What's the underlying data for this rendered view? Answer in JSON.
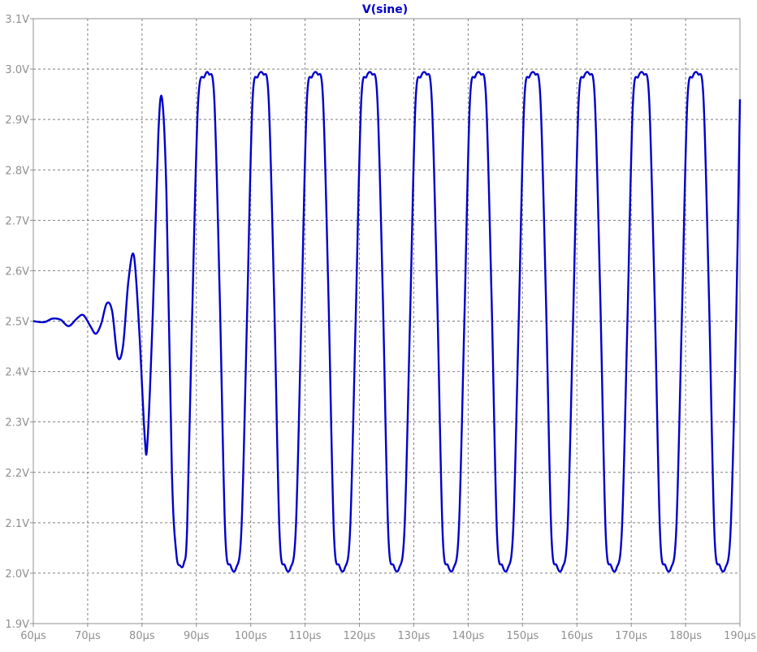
{
  "trace_name": "V(sine)",
  "colors": {
    "background": "#ffffff",
    "frame": "#909090",
    "grid": "#808080",
    "tick_label": "#909090",
    "trace": "#0000cc"
  },
  "chart_data": {
    "type": "line",
    "title": "V(sine)",
    "xlabel": "",
    "ylabel": "",
    "x_unit": "µs",
    "y_unit": "V",
    "xlim": [
      60,
      190
    ],
    "ylim": [
      1.9,
      3.1
    ],
    "grid": true,
    "x_ticks": [
      60,
      70,
      80,
      90,
      100,
      110,
      120,
      130,
      140,
      150,
      160,
      170,
      180,
      190
    ],
    "x_tick_labels": [
      "60µs",
      "70µs",
      "80µs",
      "90µs",
      "100µs",
      "110µs",
      "120µs",
      "130µs",
      "140µs",
      "150µs",
      "160µs",
      "170µs",
      "180µs",
      "190µs"
    ],
    "y_ticks": [
      1.9,
      2.0,
      2.1,
      2.2,
      2.3,
      2.4,
      2.5,
      2.6,
      2.7,
      2.8,
      2.9,
      3.0,
      3.1
    ],
    "y_tick_labels": [
      "1.9V",
      "2.0V",
      "2.1V",
      "2.2V",
      "2.3V",
      "2.4V",
      "2.5V",
      "2.6V",
      "2.7V",
      "2.8V",
      "2.9V",
      "3.0V",
      "3.1V"
    ],
    "series": [
      {
        "name": "V(sine)",
        "x": [
          60,
          62,
          63.5,
          65,
          66.5,
          68,
          69.2,
          70.5,
          71.5,
          72.5,
          73.5,
          74.5,
          75.5,
          76.5,
          77.5,
          78.5,
          79.5,
          80.5,
          81,
          82,
          83,
          83.7,
          84.5,
          85.5,
          86.3,
          87,
          87.7,
          88.3,
          89.2,
          90.3,
          91.5,
          92.3,
          93.3,
          94.3,
          95.3,
          96.3,
          97.3,
          98.3,
          99.3,
          100.3,
          101.3,
          102.3,
          103.3,
          104.3,
          105.3,
          106.3,
          107.3,
          108.3,
          109.3,
          110.3,
          111.3,
          112.3,
          113.3,
          114.3,
          115.3,
          116.3,
          117.3,
          118.3,
          119.3,
          120.3,
          121.3,
          122.3,
          123.3,
          124.3,
          125.3,
          126.3,
          127.3,
          128.3,
          129.3,
          130.3,
          131.3,
          132.3,
          133.3,
          134.3,
          135.3,
          136.3,
          137.3,
          138.3,
          139.3,
          140.3,
          141.3,
          142.3,
          143.3,
          144.3,
          145.3,
          146.3,
          147.3,
          148.3,
          149.3,
          150.3,
          151.3,
          152.3,
          153.3,
          154.3,
          155.3,
          156.3,
          157.3,
          158.3,
          159.3,
          160.3,
          161.3,
          162.3,
          163.3,
          164.3,
          165.3,
          166.3,
          167.3,
          168.3,
          169.3,
          170.3,
          171.3,
          172.3,
          173.3,
          174.3,
          175.3,
          176.3,
          177.3,
          178.3,
          179.3,
          180.3,
          181.3,
          182.3,
          183.3,
          184.3,
          185.3,
          186.3,
          187.3,
          188.3,
          189.3,
          190
        ],
        "y": [
          2.5,
          2.498,
          2.505,
          2.503,
          2.49,
          2.505,
          2.512,
          2.49,
          2.475,
          2.495,
          2.535,
          2.52,
          2.43,
          2.45,
          2.58,
          2.63,
          2.48,
          2.27,
          2.26,
          2.52,
          2.87,
          2.94,
          2.75,
          2.2,
          2.04,
          2.015,
          2.02,
          2.09,
          2.5,
          2.93,
          2.985,
          2.99,
          2.94,
          2.55,
          2.08,
          2.015,
          2.01,
          2.09,
          2.5,
          2.93,
          2.985,
          2.99,
          2.94,
          2.55,
          2.08,
          2.015,
          2.01,
          2.09,
          2.5,
          2.93,
          2.985,
          2.99,
          2.94,
          2.55,
          2.08,
          2.015,
          2.01,
          2.09,
          2.5,
          2.93,
          2.985,
          2.99,
          2.94,
          2.55,
          2.08,
          2.015,
          2.01,
          2.09,
          2.5,
          2.93,
          2.985,
          2.99,
          2.94,
          2.55,
          2.08,
          2.015,
          2.01,
          2.09,
          2.5,
          2.93,
          2.985,
          2.99,
          2.94,
          2.55,
          2.08,
          2.015,
          2.01,
          2.09,
          2.5,
          2.93,
          2.985,
          2.99,
          2.94,
          2.55,
          2.08,
          2.015,
          2.01,
          2.09,
          2.5,
          2.93,
          2.985,
          2.99,
          2.94,
          2.55,
          2.08,
          2.015,
          2.01,
          2.09,
          2.5,
          2.93,
          2.985,
          2.99,
          2.94,
          2.55,
          2.08,
          2.015,
          2.01,
          2.09,
          2.5,
          2.93,
          2.985,
          2.99,
          2.94,
          2.55,
          2.08,
          2.015,
          2.01,
          2.09,
          2.5,
          2.94
        ]
      }
    ]
  }
}
